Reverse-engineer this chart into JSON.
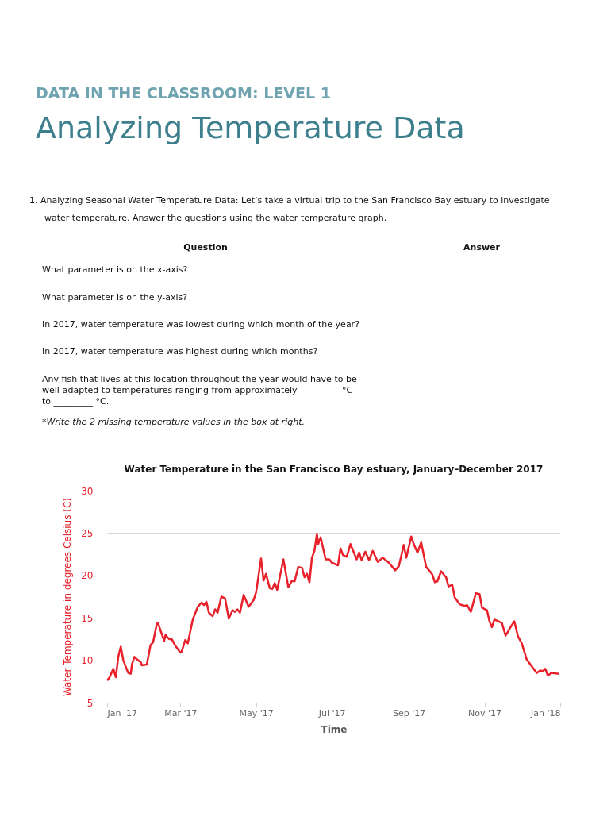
{
  "chart_data": {
    "type": "line",
    "title": "Water Temperature in the San Francisco Bay estuary, January–December 2017",
    "xlabel": "Time",
    "ylabel": "Water Temperature in degrees Celsius (C)",
    "annotations": [
      "DATA IN THE CLASSROOM: LEVEL 1",
      "Analyzing Temperature Data",
      "1.  Analyzing Seasonal Water Temperature Data:    Let’s take a virtual trip to the San Francisco Bay estuary to investigate",
      "water temperature.  Answer the questions using the water temperature graph.",
      "Question",
      "Answer",
      "What parameter is on the x-axis?",
      "What parameter is on the y-axis?",
      "In 2017, water temperature was lowest during which month of the year?",
      "In 2017, water temperature was highest during which months?",
      "Any fish that lives at this location throughout the year would have to be",
      "well-adapted to temperatures ranging from approximately _________  °C",
      "to  _________  °C.",
      "*Write the 2 missing temperature values in the box at right."
    ],
    "x": [
      "2017-01-01",
      "2017-01-03",
      "2017-01-06",
      "2017-01-08",
      "2017-01-10",
      "2017-01-12",
      "2017-01-14",
      "2017-01-18",
      "2017-01-20",
      "2017-01-21",
      "2017-01-23",
      "2017-01-26",
      "2017-01-28",
      "2017-01-29",
      "2017-02-02",
      "2017-02-05",
      "2017-02-07",
      "2017-02-10",
      "2017-02-11",
      "2017-02-14",
      "2017-02-16",
      "2017-02-17",
      "2017-02-18",
      "2017-02-20",
      "2017-02-22",
      "2017-02-25",
      "2017-03-01",
      "2017-03-02",
      "2017-03-05",
      "2017-03-07",
      "2017-03-11",
      "2017-03-15",
      "2017-03-18",
      "2017-03-20",
      "2017-03-22",
      "2017-03-24",
      "2017-03-27",
      "2017-03-29",
      "2017-03-31",
      "2017-04-03",
      "2017-04-06",
      "2017-04-09",
      "2017-04-12",
      "2017-04-14",
      "2017-04-16",
      "2017-04-18",
      "2017-04-21",
      "2017-04-25",
      "2017-04-29",
      "2017-05-01",
      "2017-05-05",
      "2017-05-07",
      "2017-05-09",
      "2017-05-12",
      "2017-05-14",
      "2017-05-16",
      "2017-05-18",
      "2017-05-23",
      "2017-05-27",
      "2017-05-30",
      "2017-06-01",
      "2017-06-04",
      "2017-06-07",
      "2017-06-09",
      "2017-06-11",
      "2017-06-13",
      "2017-06-15",
      "2017-06-17",
      "2017-06-19",
      "2017-06-20",
      "2017-06-22",
      "2017-06-26",
      "2017-06-29",
      "2017-07-01",
      "2017-07-06",
      "2017-07-08",
      "2017-07-10",
      "2017-07-13",
      "2017-07-16",
      "2017-07-21",
      "2017-07-23",
      "2017-07-25",
      "2017-07-28",
      "2017-07-31",
      "2017-08-03",
      "2017-08-07",
      "2017-08-11",
      "2017-08-16",
      "2017-08-21",
      "2017-08-24",
      "2017-08-28",
      "2017-08-30",
      "2017-09-03",
      "2017-09-05",
      "2017-09-08",
      "2017-09-11",
      "2017-09-15",
      "2017-09-18",
      "2017-09-20",
      "2017-09-22",
      "2017-09-24",
      "2017-09-27",
      "2017-10-01",
      "2017-10-03",
      "2017-10-06",
      "2017-10-08",
      "2017-10-12",
      "2017-10-16",
      "2017-10-18",
      "2017-10-21",
      "2017-10-25",
      "2017-10-28",
      "2017-10-30",
      "2017-11-03",
      "2017-11-05",
      "2017-11-07",
      "2017-11-09",
      "2017-11-12",
      "2017-11-15",
      "2017-11-18",
      "2017-11-22",
      "2017-11-25",
      "2017-11-28",
      "2017-12-01",
      "2017-12-05",
      "2017-12-08",
      "2017-12-10",
      "2017-12-13",
      "2017-12-16",
      "2017-12-18",
      "2017-12-20",
      "2017-12-22",
      "2017-12-25",
      "2017-12-31"
    ],
    "series": [
      {
        "color": "#e8202a",
        "values": [
          7.6,
          8.0,
          9.0,
          8.0,
          10.4,
          11.6,
          10.0,
          8.5,
          8.4,
          9.5,
          10.4,
          10.0,
          9.8,
          9.4,
          9.5,
          11.8,
          12.1,
          14.3,
          14.4,
          13.1,
          12.3,
          13.0,
          12.8,
          12.5,
          12.5,
          11.7,
          10.9,
          11.0,
          12.4,
          12.0,
          14.8,
          16.3,
          16.8,
          16.5,
          16.9,
          15.6,
          15.2,
          16.0,
          15.6,
          17.5,
          17.3,
          14.9,
          15.9,
          15.7,
          16.0,
          15.6,
          17.7,
          16.3,
          17.1,
          18.0,
          22.0,
          19.4,
          20.2,
          18.5,
          18.4,
          19.1,
          18.3,
          21.9,
          18.6,
          19.4,
          19.3,
          21.0,
          20.9,
          19.8,
          20.2,
          19.2,
          22.1,
          22.9,
          24.9,
          23.7,
          24.5,
          21.9,
          21.9,
          21.5,
          21.2,
          23.2,
          22.4,
          22.2,
          23.7,
          21.9,
          22.7,
          21.8,
          22.8,
          21.8,
          22.9,
          21.6,
          22.1,
          21.5,
          20.6,
          21.1,
          23.6,
          22.1,
          24.6,
          23.7,
          22.7,
          23.9,
          21.0,
          20.5,
          20.1,
          19.2,
          19.3,
          20.5,
          19.8,
          18.7,
          18.9,
          17.4,
          16.6,
          16.4,
          16.5,
          15.7,
          17.9,
          17.8,
          16.2,
          15.9,
          14.6,
          13.9,
          14.8,
          14.6,
          14.4,
          12.9,
          13.9,
          14.6,
          12.8,
          12.0,
          10.1,
          9.5,
          9.1,
          8.5,
          8.8,
          8.7,
          9.0,
          8.2,
          8.5,
          8.4
        ]
      }
    ],
    "xlim": [
      "2017-01-01",
      "2018-01-01"
    ],
    "xticks": [
      {
        "value": "2017-01-01",
        "label": "Jan '17"
      },
      {
        "value": "2017-03-01",
        "label": "Mar '17"
      },
      {
        "value": "2017-05-01",
        "label": "May '17"
      },
      {
        "value": "2017-07-01",
        "label": "Jul '17"
      },
      {
        "value": "2017-09-01",
        "label": "Sep '17"
      },
      {
        "value": "2017-11-01",
        "label": "Nov '17"
      },
      {
        "value": "2018-01-01",
        "label": "Jan '18"
      }
    ],
    "ylim": [
      5,
      30
    ],
    "yticks": [
      5,
      10,
      15,
      20,
      25,
      30
    ],
    "grid": "y",
    "legend": false,
    "marker": "none",
    "line_style": "solid"
  }
}
